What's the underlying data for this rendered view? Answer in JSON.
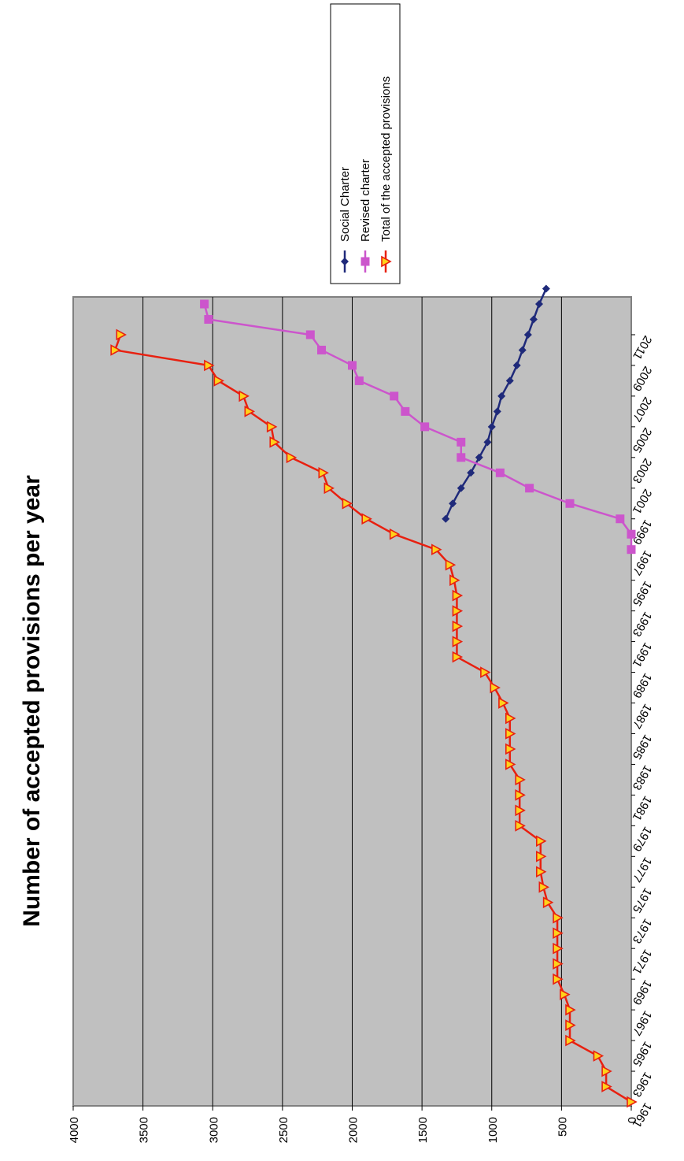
{
  "chart_data": {
    "type": "line",
    "title": "Number of accepted provisions per year",
    "xlabel": "",
    "ylabel": "",
    "orientation": "rotated-90-clockwise",
    "ylim": [
      0,
      4000
    ],
    "yticks": [
      "0",
      "500",
      "1000",
      "1500",
      "2000",
      "2500",
      "3000",
      "3500",
      "4000"
    ],
    "xlim": [
      1961,
      2012
    ],
    "xticks": [
      "1961",
      "1963",
      "1965",
      "1967",
      "1969",
      "1971",
      "1973",
      "1975",
      "1977",
      "1979",
      "1981",
      "1983",
      "1985",
      "1987",
      "1989",
      "1991",
      "1993",
      "1995",
      "1997",
      "1999",
      "2001",
      "2003",
      "2005",
      "2007",
      "2009",
      "2011"
    ],
    "grid": true,
    "plot_background": "#c0c0c0",
    "legend_position": "top-right",
    "series": [
      {
        "name": "Social Charter",
        "color": "#1f2a7a",
        "marker": "diamond",
        "points": [
          [
            1999,
            1330
          ],
          [
            2000,
            1280
          ],
          [
            2001,
            1220
          ],
          [
            2002,
            1150
          ],
          [
            2003,
            1090
          ],
          [
            2004,
            1030
          ],
          [
            2005,
            1000
          ],
          [
            2006,
            960
          ],
          [
            2007,
            930
          ],
          [
            2008,
            870
          ],
          [
            2009,
            820
          ],
          [
            2010,
            780
          ],
          [
            2011,
            740
          ],
          [
            2012,
            700
          ],
          [
            2013,
            660
          ],
          [
            2014,
            610
          ]
        ]
      },
      {
        "name": "Revised charter",
        "color": "#cc55cc",
        "marker": "square",
        "points": [
          [
            1997,
            0
          ],
          [
            1998,
            0
          ],
          [
            1999,
            80
          ],
          [
            2000,
            440
          ],
          [
            2001,
            730
          ],
          [
            2002,
            940
          ],
          [
            2003,
            1220
          ],
          [
            2004,
            1220
          ],
          [
            2005,
            1480
          ],
          [
            2006,
            1620
          ],
          [
            2007,
            1700
          ],
          [
            2008,
            1950
          ],
          [
            2009,
            2000
          ],
          [
            2010,
            2220
          ],
          [
            2011,
            2300
          ],
          [
            2012,
            3030
          ],
          [
            2013,
            3060
          ]
        ]
      },
      {
        "name": "Total of the accepted provisions",
        "color": "#e82010",
        "marker": "triangle",
        "marker_fill": "#ffd21a",
        "points": [
          [
            1961,
            0
          ],
          [
            1962,
            180
          ],
          [
            1963,
            180
          ],
          [
            1964,
            240
          ],
          [
            1965,
            440
          ],
          [
            1966,
            440
          ],
          [
            1967,
            440
          ],
          [
            1968,
            480
          ],
          [
            1969,
            530
          ],
          [
            1970,
            530
          ],
          [
            1971,
            530
          ],
          [
            1972,
            530
          ],
          [
            1973,
            530
          ],
          [
            1974,
            600
          ],
          [
            1975,
            630
          ],
          [
            1976,
            650
          ],
          [
            1977,
            650
          ],
          [
            1978,
            650
          ],
          [
            1979,
            800
          ],
          [
            1980,
            800
          ],
          [
            1981,
            800
          ],
          [
            1982,
            800
          ],
          [
            1983,
            870
          ],
          [
            1984,
            870
          ],
          [
            1985,
            870
          ],
          [
            1986,
            870
          ],
          [
            1987,
            920
          ],
          [
            1988,
            980
          ],
          [
            1989,
            1050
          ],
          [
            1990,
            1250
          ],
          [
            1991,
            1250
          ],
          [
            1992,
            1250
          ],
          [
            1993,
            1250
          ],
          [
            1994,
            1250
          ],
          [
            1995,
            1270
          ],
          [
            1996,
            1300
          ],
          [
            1997,
            1400
          ],
          [
            1998,
            1700
          ],
          [
            1999,
            1900
          ],
          [
            2000,
            2040
          ],
          [
            2001,
            2170
          ],
          [
            2002,
            2210
          ],
          [
            2003,
            2440
          ],
          [
            2004,
            2560
          ],
          [
            2005,
            2580
          ],
          [
            2006,
            2740
          ],
          [
            2007,
            2780
          ],
          [
            2008,
            2960
          ],
          [
            2009,
            3030
          ],
          [
            2010,
            3700
          ],
          [
            2011,
            3660
          ]
        ]
      }
    ]
  }
}
